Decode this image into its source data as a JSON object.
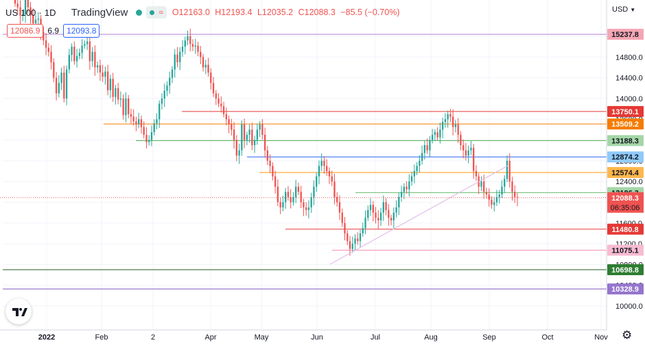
{
  "header": {
    "symbol": "US 100 · 1D",
    "brand": "TradingView",
    "pill_icon": "≈",
    "o": "O12163.0",
    "h": "H12193.4",
    "l": "L12035.2",
    "c": "C12088.3",
    "change": "−85.5 (−0.70%)"
  },
  "bidask": {
    "bid": "12086.9",
    "spread": "6.9",
    "ask": "12093.8"
  },
  "currency": "USD",
  "icons": {
    "currency_dropdown": "chevron-down-icon",
    "logo": "tradingview-logo-icon",
    "settings": "gear-icon",
    "status": "market-open-dot"
  },
  "colors": {
    "up": "#26a69a",
    "down": "#ef5350"
  },
  "chart_data": {
    "type": "candlestick",
    "y_range": [
      9880,
      15900
    ],
    "y_ticks": [
      "15200.0",
      "14800.0",
      "14400.0",
      "14000.0",
      "13600.0",
      "13200.0",
      "12800.0",
      "12400.0",
      "12000.0",
      "11600.0",
      "11200.0",
      "10800.0",
      "10400.0",
      "10000.0"
    ],
    "x_ticks": [
      "2022",
      "Feb",
      "2",
      "Apr",
      "May",
      "Jun",
      "Jul",
      "Aug",
      "Sep",
      "Oct",
      "Nov"
    ],
    "levels": [
      {
        "label": "15237.8",
        "value": 15237.8,
        "color": "#b37bd3",
        "bg": "#f4a6b4",
        "txt": "#131722",
        "x_start": "Jan"
      },
      {
        "label": "13750.1",
        "value": 13750.1,
        "color": "#e53935",
        "bg": "#e53935",
        "txt": "#ffffff",
        "x_start": "early May"
      },
      {
        "label": "13509.2",
        "value": 13509.2,
        "color": "#f57c00",
        "bg": "#f57c00",
        "txt": "#ffffff",
        "x_start": "early Feb"
      },
      {
        "label": "13188.3",
        "value": 13188.3,
        "color": "#4caf50",
        "bg": "#a5d6a7",
        "txt": "#131722",
        "x_start": "mid Feb"
      },
      {
        "label": "12874.2",
        "value": 12874.2,
        "color": "#2962ff",
        "bg": "#90caf9",
        "txt": "#131722",
        "x_start": "early May"
      },
      {
        "label": "12574.4",
        "value": 12574.4,
        "color": "#ff9800",
        "bg": "#ffb74d",
        "txt": "#131722",
        "x_start": "early May"
      },
      {
        "label": "12186.3",
        "value": 12186.3,
        "color": "#66bb6a",
        "bg": "#a5d6a7",
        "txt": "#131722",
        "x_start": "late Jun"
      },
      {
        "label": "11480.8",
        "value": 11480.8,
        "color": "#e53935",
        "bg": "#e53935",
        "txt": "#ffffff",
        "x_start": "mid May"
      },
      {
        "label": "11075.1",
        "value": 11075.1,
        "color": "#f48fb1",
        "bg": "#f8bbd0",
        "txt": "#131722",
        "x_start": "mid Jun"
      },
      {
        "label": "10698.8",
        "value": 10698.8,
        "color": "#1b5e20",
        "bg": "#2e7d32",
        "txt": "#ffffff",
        "x_start": "Jan"
      },
      {
        "label": "10328.9",
        "value": 10328.9,
        "color": "#7e57c2",
        "bg": "#9575cd",
        "txt": "#ffffff",
        "x_start": "Jan"
      }
    ],
    "current_price": {
      "label": "12088.3",
      "value": 12088.3,
      "countdown": "06:35:06",
      "bg": "#ef5350"
    },
    "trendline": {
      "from": [
        11000,
        "mid Jun"
      ],
      "to": [
        12570,
        "late Aug"
      ],
      "color": "#e1bee7"
    },
    "closes": [
      15830,
      15760,
      15600,
      15620,
      15900,
      15760,
      15600,
      15450,
      15520,
      15540,
      15280,
      15120,
      14980,
      14900,
      14700,
      14400,
      14100,
      14300,
      14500,
      14000,
      14560,
      14840,
      15000,
      14720,
      14820,
      14880,
      15020,
      15050,
      15100,
      14720,
      14900,
      14600,
      14640,
      14500,
      14420,
      14520,
      14160,
      14380,
      14030,
      14200,
      13980,
      14000,
      13680,
      14000,
      13700,
      13650,
      13560,
      13500,
      13600,
      13450,
      13300,
      13160,
      13200,
      13350,
      13520,
      13600,
      13900,
      14000,
      14150,
      14250,
      14400,
      14560,
      14850,
      14700,
      14900,
      15000,
      15120,
      15200,
      15050,
      15000,
      15020,
      14900,
      14800,
      14600,
      14650,
      14500,
      14300,
      14100,
      14000,
      13900,
      13850,
      13700,
      13600,
      13500,
      13400,
      13200,
      12900,
      13000,
      13500,
      13200,
      13300,
      13400,
      13100,
      13200,
      13400,
      13500,
      13300,
      13000,
      12800,
      12700,
      12500,
      12300,
      12000,
      11900,
      12000,
      12200,
      12100,
      12000,
      12100,
      12300,
      12200,
      12000,
      11900,
      11850,
      11900,
      12100,
      12300,
      12500,
      12700,
      12800,
      12700,
      12600,
      12500,
      12400,
      12100,
      12000,
      11800,
      11600,
      11400,
      11250,
      11100,
      11200,
      11300,
      11250,
      11400,
      11500,
      11700,
      11850,
      11950,
      11800,
      11700,
      11650,
      11800,
      12000,
      11850,
      11700,
      11650,
      11800,
      11900,
      12100,
      12200,
      12300,
      12250,
      12400,
      12500,
      12600,
      12700,
      12800,
      12950,
      13100,
      13000,
      13200,
      13300,
      13350,
      13250,
      13400,
      13550,
      13600,
      13700,
      13650,
      13450,
      13500,
      13300,
      13100,
      13000,
      12900,
      13000,
      13050,
      12600,
      12500,
      12300,
      12400,
      12200,
      12150,
      12050,
      11950,
      12000,
      12100,
      12150,
      12300,
      12450,
      12800,
      12400,
      12200,
      12100,
      12088
    ]
  }
}
